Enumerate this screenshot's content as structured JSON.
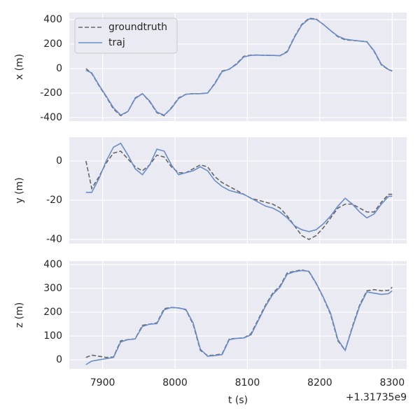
{
  "chart_data": [
    {
      "type": "line",
      "ylabel": "x (m)",
      "legend": "upper left",
      "grid": true,
      "xlim": [
        7854,
        8320
      ],
      "xticks": [
        7900,
        8000,
        8100,
        8200,
        8300
      ],
      "ylim": [
        -429,
        457
      ],
      "yticks": [
        -400,
        -200,
        0,
        200,
        400
      ],
      "x": [
        7877,
        7885,
        7895,
        7905,
        7915,
        7925,
        7935,
        7945,
        7955,
        7965,
        7975,
        7985,
        7995,
        8005,
        8015,
        8025,
        8035,
        8045,
        8055,
        8065,
        8075,
        8085,
        8095,
        8105,
        8115,
        8125,
        8135,
        8145,
        8155,
        8165,
        8175,
        8185,
        8195,
        8205,
        8215,
        8225,
        8235,
        8245,
        8255,
        8265,
        8275,
        8285,
        8295,
        8300
      ],
      "series": [
        {
          "name": "groundtruth",
          "color": "#666666",
          "dashed": true,
          "values": [
            0,
            -40,
            -140,
            -230,
            -330,
            -385,
            -350,
            -240,
            -205,
            -270,
            -360,
            -385,
            -320,
            -240,
            -210,
            -205,
            -205,
            -200,
            -120,
            -20,
            -5,
            40,
            100,
            110,
            110,
            108,
            108,
            105,
            140,
            260,
            360,
            410,
            405,
            360,
            310,
            260,
            235,
            230,
            225,
            220,
            140,
            30,
            -10,
            -20
          ]
        },
        {
          "name": "traj",
          "color": "#6a8cc7",
          "dashed": false,
          "values": [
            -15,
            -35,
            -135,
            -225,
            -320,
            -380,
            -350,
            -245,
            -205,
            -265,
            -355,
            -380,
            -325,
            -245,
            -210,
            -205,
            -205,
            -200,
            -125,
            -25,
            -5,
            35,
            95,
            108,
            110,
            108,
            107,
            105,
            135,
            255,
            355,
            405,
            402,
            360,
            310,
            265,
            240,
            232,
            225,
            218,
            145,
            35,
            -8,
            -18
          ]
        }
      ]
    },
    {
      "type": "line",
      "ylabel": "y (m)",
      "grid": true,
      "xlim": [
        7854,
        8320
      ],
      "xticks": [
        7900,
        8000,
        8100,
        8200,
        8300
      ],
      "ylim": [
        -42.1,
        12.1
      ],
      "yticks": [
        -40,
        -20,
        0
      ],
      "x": [
        7877,
        7885,
        7895,
        7905,
        7915,
        7925,
        7935,
        7945,
        7955,
        7965,
        7975,
        7985,
        7995,
        8005,
        8015,
        8025,
        8035,
        8045,
        8055,
        8065,
        8075,
        8085,
        8095,
        8105,
        8115,
        8125,
        8135,
        8145,
        8155,
        8165,
        8175,
        8185,
        8195,
        8205,
        8215,
        8225,
        8235,
        8245,
        8255,
        8265,
        8275,
        8285,
        8295,
        8300
      ],
      "series": [
        {
          "color": "#666666",
          "dashed": true,
          "values": [
            0,
            -14,
            -8,
            -1,
            4,
            5,
            1,
            -3,
            -5,
            -2,
            3,
            2,
            -3,
            -6,
            -6,
            -4,
            -2,
            -3,
            -8,
            -11,
            -13,
            -15,
            -17,
            -19,
            -20,
            -21,
            -22,
            -24,
            -28,
            -33,
            -38,
            -40,
            -38,
            -34,
            -29,
            -24,
            -22,
            -22,
            -24,
            -26,
            -26,
            -21,
            -17,
            -17
          ]
        },
        {
          "color": "#6a8cc7",
          "dashed": false,
          "values": [
            -16,
            -16,
            -9,
            0,
            7,
            9,
            3,
            -4,
            -7,
            -2,
            6,
            5,
            -2,
            -7,
            -6,
            -5,
            -3,
            -5,
            -10,
            -13,
            -15,
            -16,
            -17,
            -19,
            -21,
            -23,
            -24,
            -26,
            -29,
            -33,
            -35,
            -36,
            -35,
            -32,
            -28,
            -23,
            -19,
            -22,
            -26,
            -29,
            -27,
            -22,
            -18,
            -18
          ]
        }
      ]
    },
    {
      "type": "line",
      "ylabel": "z (m)",
      "xlabel": "t (s)",
      "x_offset": "+1.31735e9",
      "grid": true,
      "xlim": [
        7854,
        8320
      ],
      "xticks": [
        7900,
        8000,
        8100,
        8200,
        8300
      ],
      "ylim": [
        -38,
        414.7
      ],
      "yticks": [
        0,
        100,
        200,
        300,
        400
      ],
      "x": [
        7877,
        7885,
        7895,
        7905,
        7915,
        7925,
        7935,
        7945,
        7955,
        7965,
        7975,
        7985,
        7995,
        8005,
        8015,
        8025,
        8035,
        8045,
        8055,
        8065,
        8075,
        8085,
        8095,
        8105,
        8115,
        8125,
        8135,
        8145,
        8155,
        8165,
        8175,
        8185,
        8195,
        8205,
        8215,
        8225,
        8235,
        8245,
        8255,
        8265,
        8275,
        8285,
        8295,
        8300
      ],
      "series": [
        {
          "color": "#666666",
          "dashed": true,
          "values": [
            10,
            20,
            15,
            10,
            12,
            80,
            85,
            88,
            145,
            150,
            155,
            215,
            220,
            218,
            210,
            150,
            40,
            18,
            20,
            25,
            88,
            90,
            92,
            110,
            170,
            230,
            280,
            310,
            365,
            372,
            378,
            370,
            320,
            260,
            190,
            80,
            40,
            140,
            230,
            290,
            295,
            290,
            292,
            305
          ]
        },
        {
          "color": "#6a8cc7",
          "dashed": false,
          "values": [
            -20,
            -5,
            0,
            5,
            10,
            75,
            85,
            88,
            140,
            150,
            152,
            210,
            220,
            218,
            212,
            155,
            45,
            15,
            18,
            22,
            85,
            90,
            92,
            105,
            165,
            225,
            275,
            305,
            360,
            370,
            375,
            372,
            322,
            262,
            195,
            85,
            40,
            135,
            225,
            285,
            280,
            275,
            278,
            290
          ]
        }
      ]
    }
  ]
}
